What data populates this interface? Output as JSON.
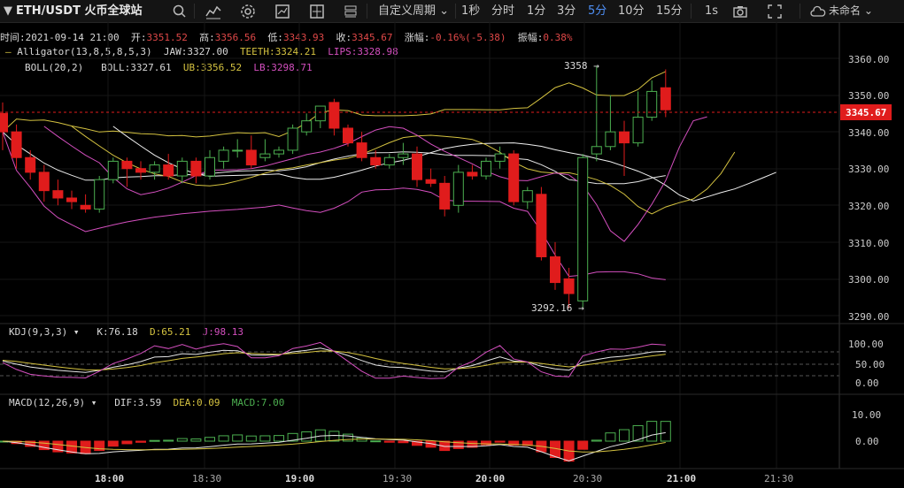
{
  "toolbar": {
    "symbol": "ETH/USDT 火币全球站",
    "period_menu": "自定义周期",
    "intervals": [
      "1秒",
      "分时",
      "1分",
      "3分",
      "5分",
      "10分",
      "15分"
    ],
    "active_interval": "5分",
    "seconds_option": "1s",
    "account": "未命名"
  },
  "info_bar": {
    "time_label": "时间:",
    "time_value": "2021-09-14 21:00",
    "open_label": "开:",
    "open_value": "3351.52",
    "high_label": "高:",
    "high_value": "3356.56",
    "low_label": "低:",
    "low_value": "3343.93",
    "close_label": "收:",
    "close_value": "3345.67",
    "change_label": "涨幅:",
    "change_value": "-0.16%(-5.38)",
    "amp_label": "振幅:",
    "amp_value": "0.38%"
  },
  "alligator": {
    "label": "Alligator(13,8,5,8,5,3)",
    "jaw_label": "JAW:",
    "jaw_value": "3327.00",
    "teeth_label": "TEETH:",
    "teeth_value": "3324.21",
    "lips_label": "LIPS:",
    "lips_value": "3328.98"
  },
  "boll": {
    "label": "BOLL(20,2)",
    "mid_label": "BOLL:",
    "mid_value": "3327.61",
    "ub_label": "UB:",
    "ub_value": "3356.52",
    "lb_label": "LB:",
    "lb_value": "3298.71"
  },
  "kdj": {
    "label": "KDJ(9,3,3)",
    "k_label": "K:",
    "k_value": "76.18",
    "d_label": "D:",
    "d_value": "65.21",
    "j_label": "J:",
    "j_value": "98.13",
    "axis": [
      "100.00",
      "50.00",
      "0.00"
    ]
  },
  "macd": {
    "label": "MACD(12,26,9)",
    "dif_label": "DIF:",
    "dif_value": "3.59",
    "dea_label": "DEA:",
    "dea_value": "0.09",
    "macd_label": "MACD:",
    "macd_value": "7.00",
    "axis": [
      "10.00",
      "0.00"
    ]
  },
  "price_axis": [
    "3360.00",
    "3350.00",
    "3340.00",
    "3330.00",
    "3320.00",
    "3310.00",
    "3300.00",
    "3290.00"
  ],
  "current_price": "3345.67",
  "max_marker": "3358 →",
  "min_marker": "3292.16 →",
  "time_axis": [
    "18:00",
    "18:30",
    "19:00",
    "19:30",
    "20:00",
    "20:30",
    "21:00",
    "21:30"
  ],
  "colors": {
    "up": "#4caf50",
    "down": "#e01c1c",
    "jaw": "#e6e6e6",
    "teeth": "#d4c240",
    "lips": "#d44fbf",
    "accent": "#4e8ff5"
  },
  "chart_data": {
    "type": "candlestick",
    "y_range": [
      3287,
      3364
    ],
    "candles": [
      [
        3345,
        3348,
        3335,
        3340
      ],
      [
        3340,
        3342,
        3330,
        3333
      ],
      [
        3333,
        3335,
        3327,
        3329
      ],
      [
        3329,
        3331,
        3321,
        3324
      ],
      [
        3324,
        3327,
        3320,
        3322
      ],
      [
        3322,
        3324,
        3319,
        3321
      ],
      [
        3320,
        3323,
        3318,
        3319
      ],
      [
        3319,
        3328,
        3318,
        3327
      ],
      [
        3327,
        3333,
        3326,
        3332
      ],
      [
        3332,
        3333,
        3325,
        3330
      ],
      [
        3330,
        3332,
        3327,
        3329
      ],
      [
        3329,
        3332,
        3327,
        3331
      ],
      [
        3331,
        3334,
        3327,
        3328
      ],
      [
        3328,
        3333,
        3326,
        3332
      ],
      [
        3332,
        3333,
        3326,
        3328
      ],
      [
        3328,
        3335,
        3327,
        3333
      ],
      [
        3332,
        3336,
        3330,
        3335
      ],
      [
        3335,
        3338,
        3333,
        3335
      ],
      [
        3335,
        3339,
        3330,
        3331
      ],
      [
        3333,
        3338,
        3332,
        3334
      ],
      [
        3334,
        3336,
        3333,
        3335
      ],
      [
        3335,
        3342,
        3334,
        3341
      ],
      [
        3340,
        3345,
        3339,
        3343
      ],
      [
        3343,
        3347,
        3341,
        3347
      ],
      [
        3348,
        3349,
        3339,
        3341
      ],
      [
        3341,
        3342,
        3336,
        3337
      ],
      [
        3337,
        3340,
        3332,
        3333
      ],
      [
        3333,
        3335,
        3330,
        3331
      ],
      [
        3331,
        3334,
        3330,
        3333
      ],
      [
        3333,
        3337,
        3331,
        3334
      ],
      [
        3334,
        3336,
        3325,
        3327
      ],
      [
        3327,
        3330,
        3325,
        3326
      ],
      [
        3326,
        3328,
        3317,
        3319
      ],
      [
        3320,
        3331,
        3318,
        3329
      ],
      [
        3329,
        3331,
        3327,
        3328
      ],
      [
        3328,
        3333,
        3327,
        3332
      ],
      [
        3332,
        3336,
        3330,
        3334
      ],
      [
        3334,
        3335,
        3320,
        3321
      ],
      [
        3321,
        3325,
        3319,
        3324
      ],
      [
        3323,
        3325,
        3305,
        3306
      ],
      [
        3306,
        3310,
        3297,
        3299
      ],
      [
        3300,
        3303,
        3292,
        3296
      ],
      [
        3294,
        3334,
        3292,
        3333
      ],
      [
        3334,
        3358,
        3332,
        3336
      ],
      [
        3336,
        3350,
        3335,
        3340
      ],
      [
        3340,
        3343,
        3328,
        3337
      ],
      [
        3337,
        3351,
        3336,
        3344
      ],
      [
        3344,
        3354,
        3343,
        3351
      ],
      [
        3352,
        3357,
        3344,
        3346
      ]
    ],
    "bull_label": "",
    "bear_label": ""
  }
}
